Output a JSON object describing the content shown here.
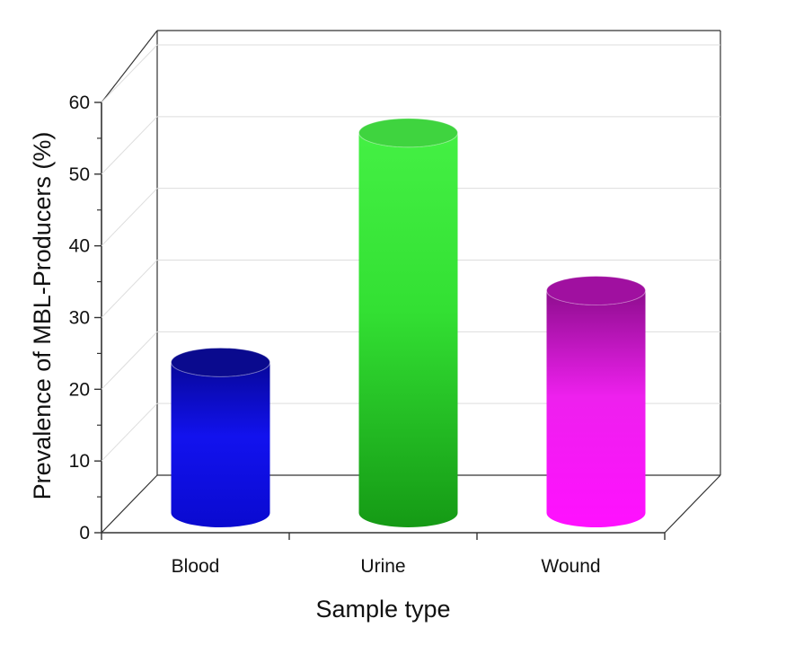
{
  "chart_data": {
    "type": "bar",
    "style": "3d-cylinder",
    "categories": [
      "Blood",
      "Urine",
      "Wound"
    ],
    "values": [
      21,
      53,
      31
    ],
    "xlabel": "Sample type",
    "ylabel": "Prevalence of MBL-Producers (%)",
    "ylim": [
      0,
      60
    ],
    "yticks": [
      0,
      10,
      20,
      30,
      40,
      50,
      60
    ],
    "grid": true,
    "colors": {
      "Blood": {
        "top": "#07079a",
        "mid": "#1212ee",
        "bottom": "#0a0ad0",
        "cap": "#0a0a8e"
      },
      "Urine": {
        "top": "#44f044",
        "mid": "#33e033",
        "bottom": "#159a15",
        "cap": "#3fd43f"
      },
      "Wound": {
        "top": "#8e0d8e",
        "mid": "#ee20ee",
        "bottom": "#ff10ff",
        "cap": "#a010a0"
      }
    },
    "axis_color": "#333333",
    "grid_color": "#dddddd"
  }
}
